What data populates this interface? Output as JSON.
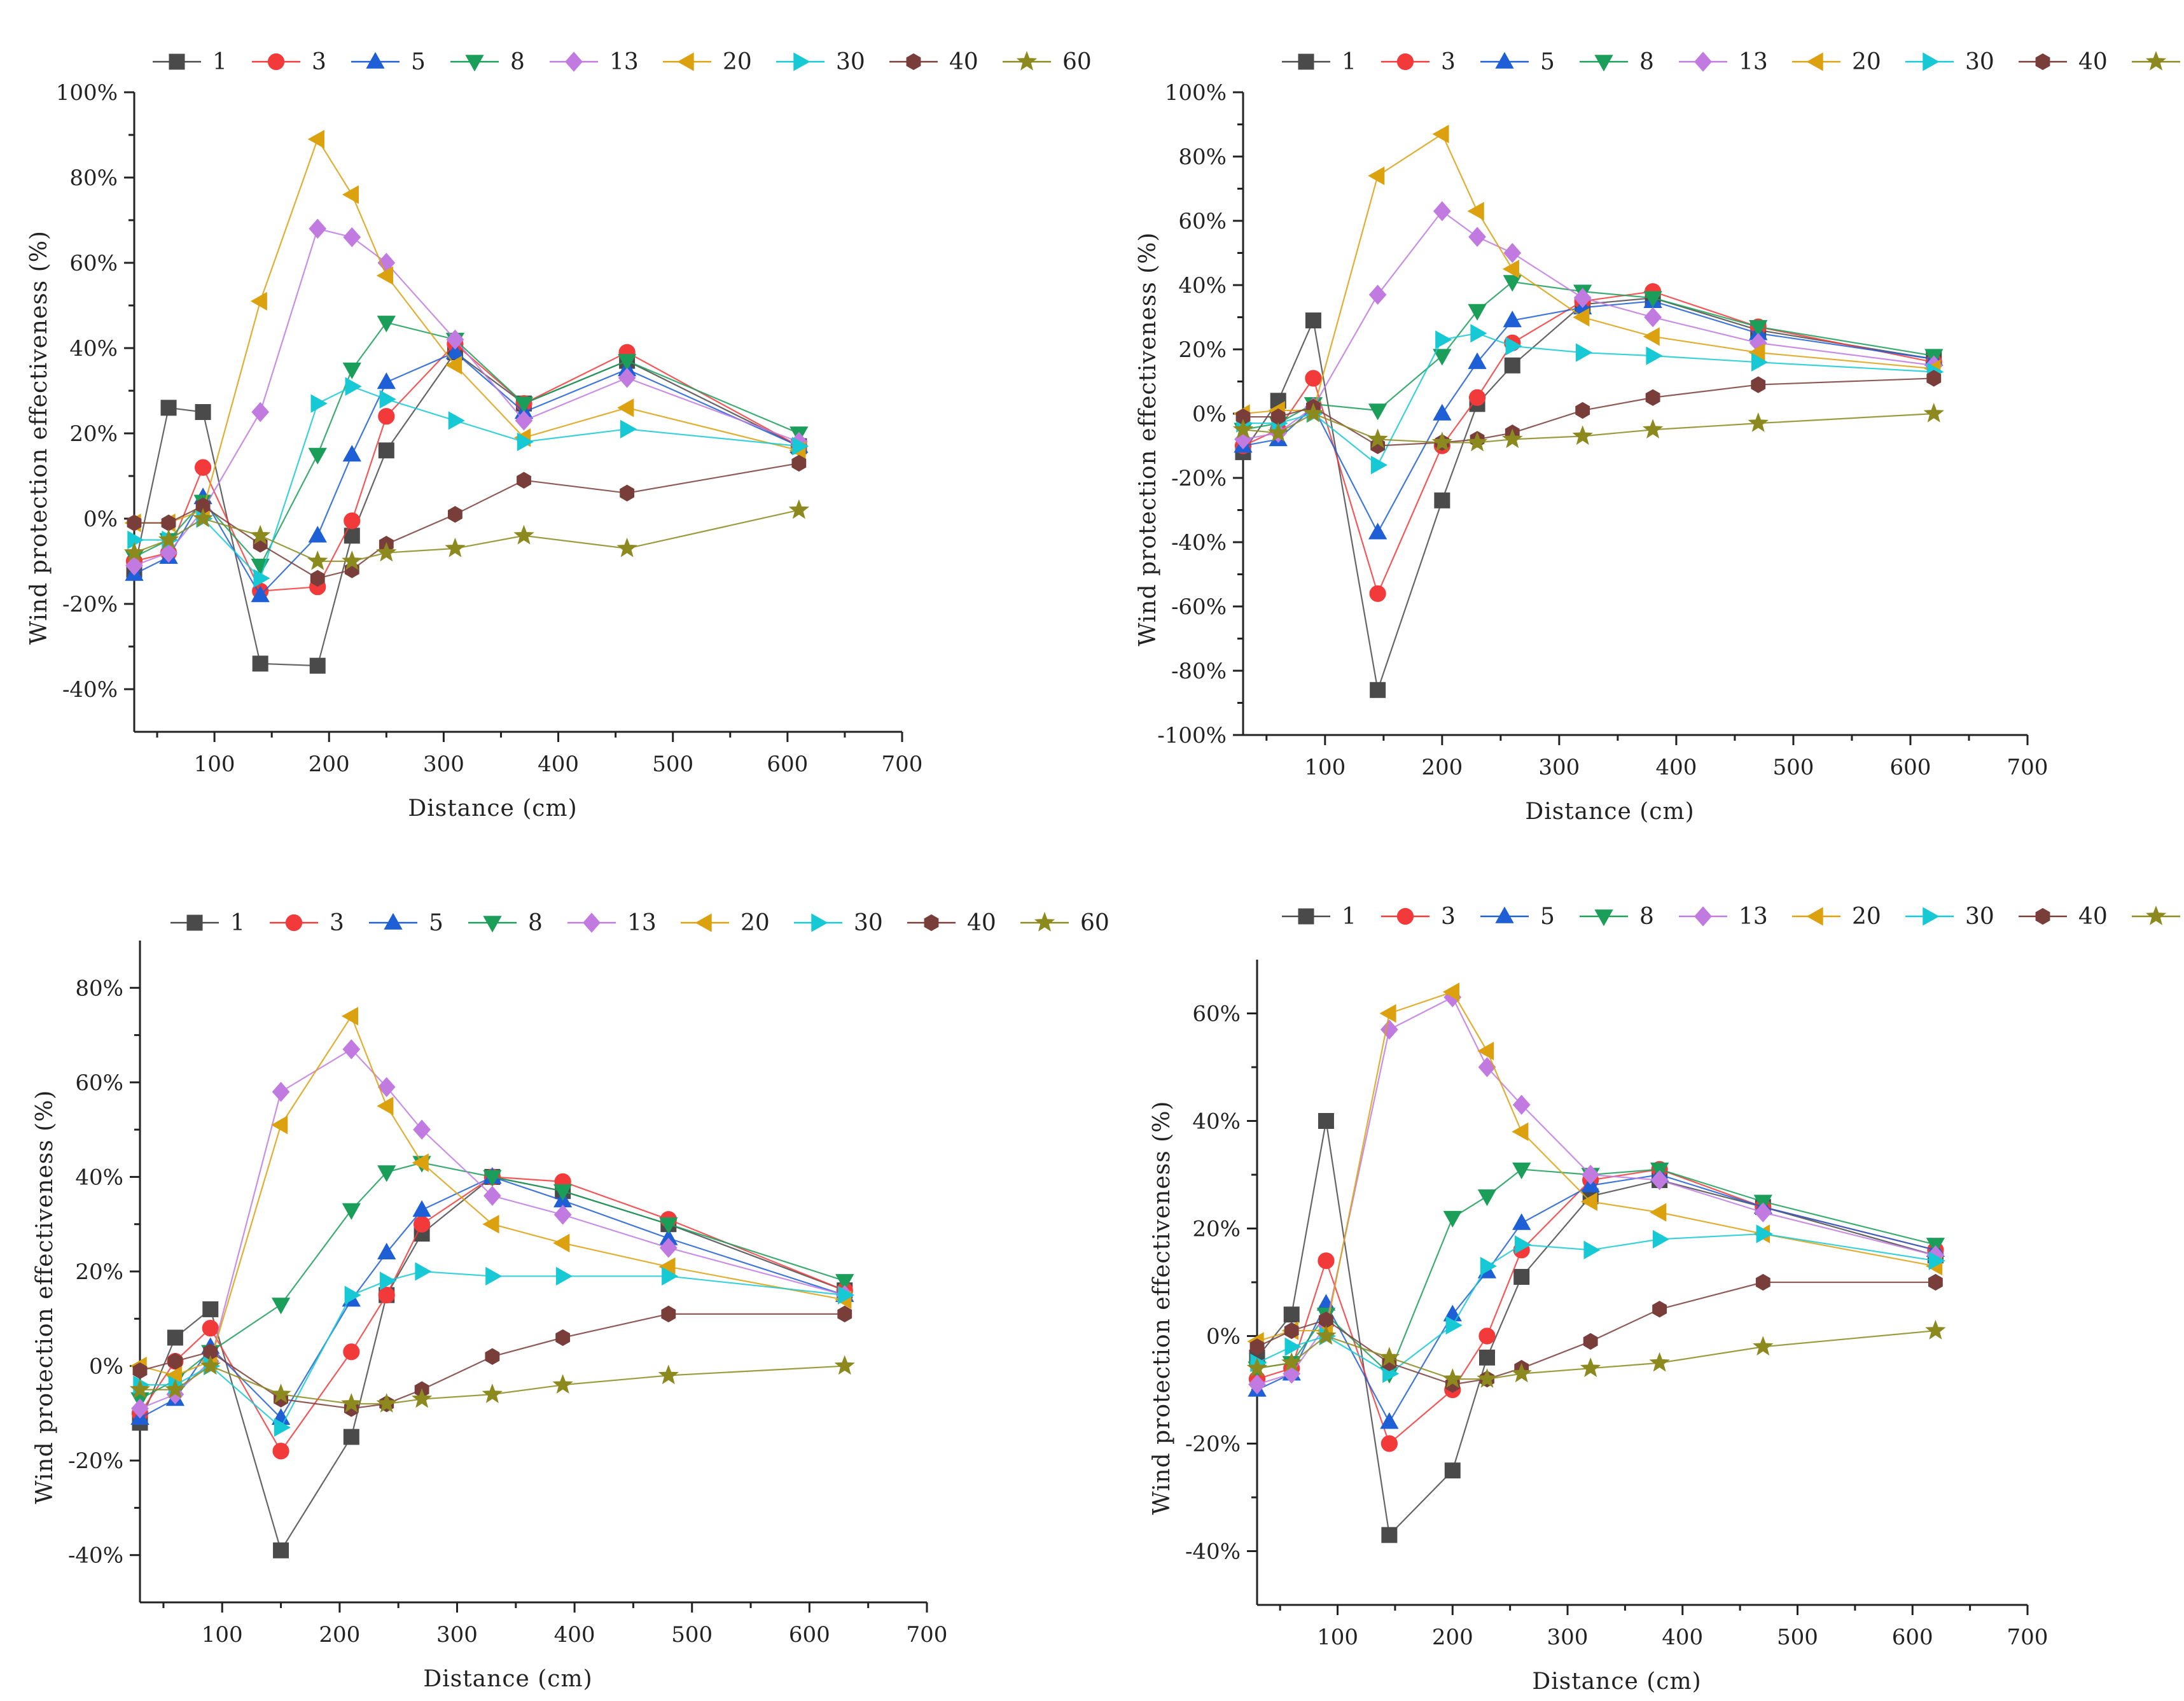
{
  "figure": {
    "series_styles": [
      {
        "name": "1",
        "color": "#4a4a4a",
        "marker": "square"
      },
      {
        "name": "3",
        "color": "#f23a3a",
        "marker": "circle"
      },
      {
        "name": "5",
        "color": "#1f5fd6",
        "marker": "triangle-up"
      },
      {
        "name": "8",
        "color": "#1a9e5a",
        "marker": "triangle-down"
      },
      {
        "name": "13",
        "color": "#c07ae0",
        "marker": "diamond"
      },
      {
        "name": "20",
        "color": "#dba10f",
        "marker": "triangle-left"
      },
      {
        "name": "30",
        "color": "#16c9d4",
        "marker": "triangle-right"
      },
      {
        "name": "40",
        "color": "#7a3e3a",
        "marker": "hexagon"
      },
      {
        "name": "60",
        "color": "#8c8a1e",
        "marker": "star"
      }
    ]
  },
  "chart_data": [
    {
      "type": "line",
      "xlabel": "Distance (cm)",
      "ylabel": "Wind protection effectiveness (%)",
      "xlim": [
        30,
        700
      ],
      "ylim": [
        -50,
        100
      ],
      "xticks": [
        100,
        200,
        300,
        400,
        500,
        600,
        700
      ],
      "xtick_labels": [
        "100",
        "200",
        "300",
        "400",
        "500",
        "600",
        "700"
      ],
      "yticks": [
        -40,
        -20,
        0,
        20,
        40,
        60,
        80,
        100
      ],
      "ytick_labels": [
        "-40%",
        "-20%",
        "0%",
        "20%",
        "40%",
        "60%",
        "80%",
        "100%"
      ],
      "grid": false,
      "legend_position": "top",
      "x": [
        30,
        60,
        90,
        140,
        190,
        220,
        250,
        310,
        370,
        460,
        610
      ],
      "series": [
        {
          "name": "1",
          "values": [
            -12,
            26,
            25,
            -34,
            -34.5,
            -4,
            16,
            39,
            27,
            37,
            17
          ]
        },
        {
          "name": "3",
          "values": [
            -10,
            -8,
            12,
            -17,
            -16,
            -0.5,
            24,
            41,
            27,
            39,
            17
          ]
        },
        {
          "name": "5",
          "values": [
            -13,
            -9,
            5,
            -18,
            -4,
            15,
            32,
            39,
            25,
            35,
            17
          ]
        },
        {
          "name": "8",
          "values": [
            -9,
            -5,
            4,
            -11,
            15,
            35,
            46,
            42,
            27,
            37,
            20
          ]
        },
        {
          "name": "13",
          "values": [
            -11,
            -8,
            2,
            25,
            68,
            66,
            60,
            42,
            23,
            33,
            18
          ]
        },
        {
          "name": "20",
          "values": [
            -1,
            -1,
            2,
            51,
            89,
            76,
            57,
            36,
            19,
            26,
            16
          ]
        },
        {
          "name": "30",
          "values": [
            -5,
            -5,
            0,
            -14,
            27,
            31,
            28,
            23,
            18,
            21,
            17
          ]
        },
        {
          "name": "40",
          "values": [
            -1,
            -1,
            3,
            -6,
            -14,
            -12,
            -6,
            1,
            9,
            6,
            13
          ]
        },
        {
          "name": "60",
          "values": [
            -8,
            -5,
            0,
            -4,
            -10,
            -10,
            -8,
            -7,
            -4,
            -7,
            2
          ]
        }
      ]
    },
    {
      "type": "line",
      "xlabel": "Distance (cm)",
      "ylabel": "Wind protection effectiveness (%)",
      "xlim": [
        30,
        700
      ],
      "ylim": [
        -100,
        100
      ],
      "xticks": [
        100,
        200,
        300,
        400,
        500,
        600,
        700
      ],
      "xtick_labels": [
        "100",
        "200",
        "300",
        "400",
        "500",
        "600",
        "700"
      ],
      "yticks": [
        -100,
        -80,
        -60,
        -40,
        -20,
        0,
        20,
        40,
        60,
        80,
        100
      ],
      "ytick_labels": [
        "-100%",
        "-80%",
        "-60%",
        "-40%",
        "-20%",
        "0%",
        "20%",
        "40%",
        "60%",
        "80%",
        "100%"
      ],
      "grid": false,
      "legend_position": "top",
      "x": [
        30,
        60,
        90,
        145,
        200,
        230,
        260,
        320,
        380,
        470,
        620
      ],
      "series": [
        {
          "name": "1",
          "values": [
            -12,
            4,
            29,
            -86,
            -27,
            3,
            15,
            34,
            36,
            26,
            17
          ]
        },
        {
          "name": "3",
          "values": [
            -10,
            -5,
            11,
            -56,
            -10,
            5,
            22,
            35,
            38,
            27,
            16
          ]
        },
        {
          "name": "5",
          "values": [
            -10,
            -8,
            2,
            -37,
            0,
            16,
            29,
            33,
            35,
            25,
            17
          ]
        },
        {
          "name": "8",
          "values": [
            -5,
            -3,
            3,
            1,
            18,
            32,
            41,
            38,
            36,
            27,
            18
          ]
        },
        {
          "name": "13",
          "values": [
            -8,
            -6,
            2,
            37,
            63,
            55,
            50,
            36,
            30,
            22,
            15
          ]
        },
        {
          "name": "20",
          "values": [
            0,
            1,
            1,
            74,
            87,
            63,
            45,
            30,
            24,
            19,
            14
          ]
        },
        {
          "name": "30",
          "values": [
            -3,
            -3,
            0,
            -16,
            23,
            25,
            21,
            19,
            18,
            16,
            13
          ]
        },
        {
          "name": "40",
          "values": [
            -1,
            -1,
            2,
            -10,
            -9,
            -8,
            -6,
            1,
            5,
            9,
            11
          ]
        },
        {
          "name": "60",
          "values": [
            -5,
            -6,
            0,
            -8,
            -9,
            -9,
            -8,
            -7,
            -5,
            -3,
            0
          ]
        }
      ]
    },
    {
      "type": "line",
      "xlabel": "Distance (cm)",
      "ylabel": "Wind protection effectiveness (%)",
      "xlim": [
        30,
        700
      ],
      "ylim": [
        -50,
        90
      ],
      "xticks": [
        100,
        200,
        300,
        400,
        500,
        600,
        700
      ],
      "xtick_labels": [
        "100",
        "200",
        "300",
        "400",
        "500",
        "600",
        "700"
      ],
      "yticks": [
        -40,
        -20,
        0,
        20,
        40,
        60,
        80
      ],
      "ytick_labels": [
        "-40%",
        "-20%",
        "0%",
        "20%",
        "40%",
        "60%",
        "80%"
      ],
      "grid": false,
      "legend_position": "top",
      "x": [
        30,
        60,
        90,
        150,
        210,
        240,
        270,
        330,
        390,
        480,
        630
      ],
      "series": [
        {
          "name": "1",
          "values": [
            -12,
            6,
            12,
            -39,
            -15,
            15,
            28,
            40,
            37,
            30,
            16
          ]
        },
        {
          "name": "3",
          "values": [
            -10,
            1,
            8,
            -18,
            3,
            15,
            30,
            40,
            39,
            31,
            16
          ]
        },
        {
          "name": "5",
          "values": [
            -11,
            -7,
            4,
            -11,
            14,
            24,
            33,
            40,
            35,
            27,
            15
          ]
        },
        {
          "name": "8",
          "values": [
            -7,
            -3,
            3,
            13,
            33,
            41,
            43,
            40,
            37,
            30,
            18
          ]
        },
        {
          "name": "13",
          "values": [
            -9,
            -6,
            1,
            58,
            67,
            59,
            50,
            36,
            32,
            25,
            15
          ]
        },
        {
          "name": "20",
          "values": [
            0,
            -2,
            1,
            51,
            74,
            55,
            43,
            30,
            26,
            21,
            14
          ]
        },
        {
          "name": "30",
          "values": [
            -4,
            -4,
            0,
            -13,
            15,
            18,
            20,
            19,
            19,
            19,
            15
          ]
        },
        {
          "name": "40",
          "values": [
            -1,
            1,
            3,
            -7,
            -9,
            -8,
            -5,
            2,
            6,
            11,
            11
          ]
        },
        {
          "name": "60",
          "values": [
            -5,
            -5,
            0,
            -6,
            -8,
            -8,
            -7,
            -6,
            -4,
            -2,
            0
          ]
        }
      ]
    },
    {
      "type": "line",
      "xlabel": "Distance (cm)",
      "ylabel": "Wind protection effectiveness (%)",
      "xlim": [
        30,
        700
      ],
      "ylim": [
        -50,
        70
      ],
      "xticks": [
        100,
        200,
        300,
        400,
        500,
        600,
        700
      ],
      "xtick_labels": [
        "100",
        "200",
        "300",
        "400",
        "500",
        "600",
        "700"
      ],
      "yticks": [
        -40,
        -20,
        0,
        20,
        40,
        60
      ],
      "ytick_labels": [
        "-40%",
        "-20%",
        "0%",
        "20%",
        "40%",
        "60%"
      ],
      "grid": false,
      "legend_position": "top",
      "x": [
        30,
        60,
        90,
        145,
        200,
        230,
        260,
        320,
        380,
        470,
        620
      ],
      "series": [
        {
          "name": "1",
          "values": [
            -4,
            4,
            40,
            -37,
            -25,
            -4,
            11,
            26,
            29,
            24,
            15
          ]
        },
        {
          "name": "3",
          "values": [
            -8,
            -6,
            14,
            -20,
            -10,
            0,
            16,
            29,
            31,
            24,
            16
          ]
        },
        {
          "name": "5",
          "values": [
            -10,
            -7,
            6,
            -16,
            4,
            12,
            21,
            28,
            30,
            24,
            16
          ]
        },
        {
          "name": "8",
          "values": [
            -6,
            -5,
            4,
            -7,
            22,
            26,
            31,
            30,
            31,
            25,
            17
          ]
        },
        {
          "name": "13",
          "values": [
            -9,
            -7,
            2,
            57,
            63,
            50,
            43,
            30,
            29,
            23,
            15
          ]
        },
        {
          "name": "20",
          "values": [
            -1,
            1,
            1,
            60,
            64,
            53,
            38,
            25,
            23,
            19,
            13
          ]
        },
        {
          "name": "30",
          "values": [
            -5,
            -2,
            0,
            -7,
            2,
            13,
            17,
            16,
            18,
            19,
            14
          ]
        },
        {
          "name": "40",
          "values": [
            -2,
            1,
            3,
            -5,
            -9,
            -8,
            -6,
            -1,
            5,
            10,
            10
          ]
        },
        {
          "name": "60",
          "values": [
            -6,
            -5,
            0,
            -4,
            -8,
            -8,
            -7,
            -6,
            -5,
            -2,
            1
          ]
        }
      ]
    }
  ]
}
